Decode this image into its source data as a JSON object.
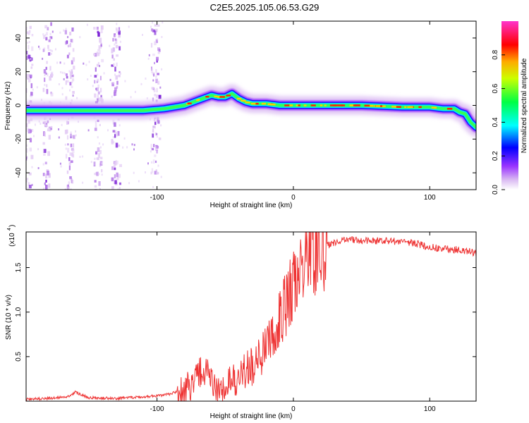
{
  "title": "C2E5.2025.105.06.53.G29",
  "chart_data": [
    {
      "type": "heatmap",
      "title": "C2E5.2025.105.06.53.G29",
      "xlabel": "Height of straight line (km)",
      "ylabel": "Frequency (Hz)",
      "xlim": [
        -196,
        134
      ],
      "ylim": [
        -50,
        50
      ],
      "x_ticks": [
        -100,
        0,
        100
      ],
      "y_ticks": [
        -40,
        -20,
        0,
        20,
        40
      ],
      "colorbar": {
        "label": "Normalized spectral amplitude",
        "range": [
          0,
          1
        ],
        "ticks": [
          "0.0",
          "0.2",
          "0.4",
          "0.6",
          "0.8"
        ],
        "colormap": [
          "#ffffff",
          "#e0c8f0",
          "#9933ff",
          "#0000ff",
          "#00ffff",
          "#00ff00",
          "#ffff00",
          "#ff0000",
          "#ff00ff"
        ]
      },
      "doppler_trace": {
        "x": [
          -196,
          -170,
          -140,
          -110,
          -95,
          -80,
          -70,
          -60,
          -55,
          -50,
          -45,
          -40,
          -35,
          -30,
          -20,
          -10,
          0,
          20,
          50,
          80,
          100,
          110,
          118,
          122,
          126,
          130,
          134
        ],
        "y": [
          -3,
          -3,
          -3,
          -3,
          -2,
          0,
          3,
          6,
          5,
          5,
          7,
          4,
          2,
          1,
          1,
          0,
          0,
          0,
          0,
          -1,
          -1,
          -2,
          -2,
          -4,
          -5,
          -10,
          -13
        ]
      },
      "ionospheric_noise_bands_x": [
        -194,
        -180,
        -164,
        -143,
        -130,
        -101
      ]
    },
    {
      "type": "line",
      "xlabel": "Height of straight line (km)",
      "ylabel": "SNR (10 * v/v)",
      "multiplier_label": "(x10",
      "multiplier_exponent": "4",
      "xlim": [
        -196,
        134
      ],
      "ylim": [
        0,
        1.9
      ],
      "x_ticks": [
        -100,
        0,
        100
      ],
      "y_ticks": [
        "0.5",
        "1.0",
        "1.5"
      ],
      "y_tick_values": [
        0.5,
        1.0,
        1.5
      ],
      "color": "#ee3333",
      "series": [
        {
          "name": "SNR",
          "x": [
            -196,
            -180,
            -165,
            -160,
            -150,
            -130,
            -110,
            -100,
            -90,
            -80,
            -75,
            -70,
            -67,
            -64,
            -62,
            -58,
            -55,
            -48,
            -45,
            -42,
            -40,
            -35,
            -30,
            -25,
            -20,
            -15,
            -10,
            -5,
            0,
            5,
            10,
            15,
            20,
            25,
            30,
            35,
            40,
            50,
            60,
            70,
            80,
            90,
            95,
            100,
            110,
            120,
            130,
            134
          ],
          "y": [
            0.02,
            0.03,
            0.05,
            0.1,
            0.04,
            0.03,
            0.05,
            0.06,
            0.08,
            0.15,
            0.18,
            0.3,
            0.35,
            0.35,
            0.25,
            0.18,
            0.12,
            0.2,
            0.3,
            0.2,
            0.25,
            0.35,
            0.4,
            0.55,
            0.6,
            0.7,
            0.9,
            1.1,
            1.3,
            1.5,
            1.55,
            1.7,
            1.65,
            1.75,
            1.78,
            1.8,
            1.82,
            1.8,
            1.8,
            1.8,
            1.79,
            1.77,
            1.75,
            1.73,
            1.71,
            1.7,
            1.68,
            1.66
          ]
        }
      ]
    }
  ]
}
